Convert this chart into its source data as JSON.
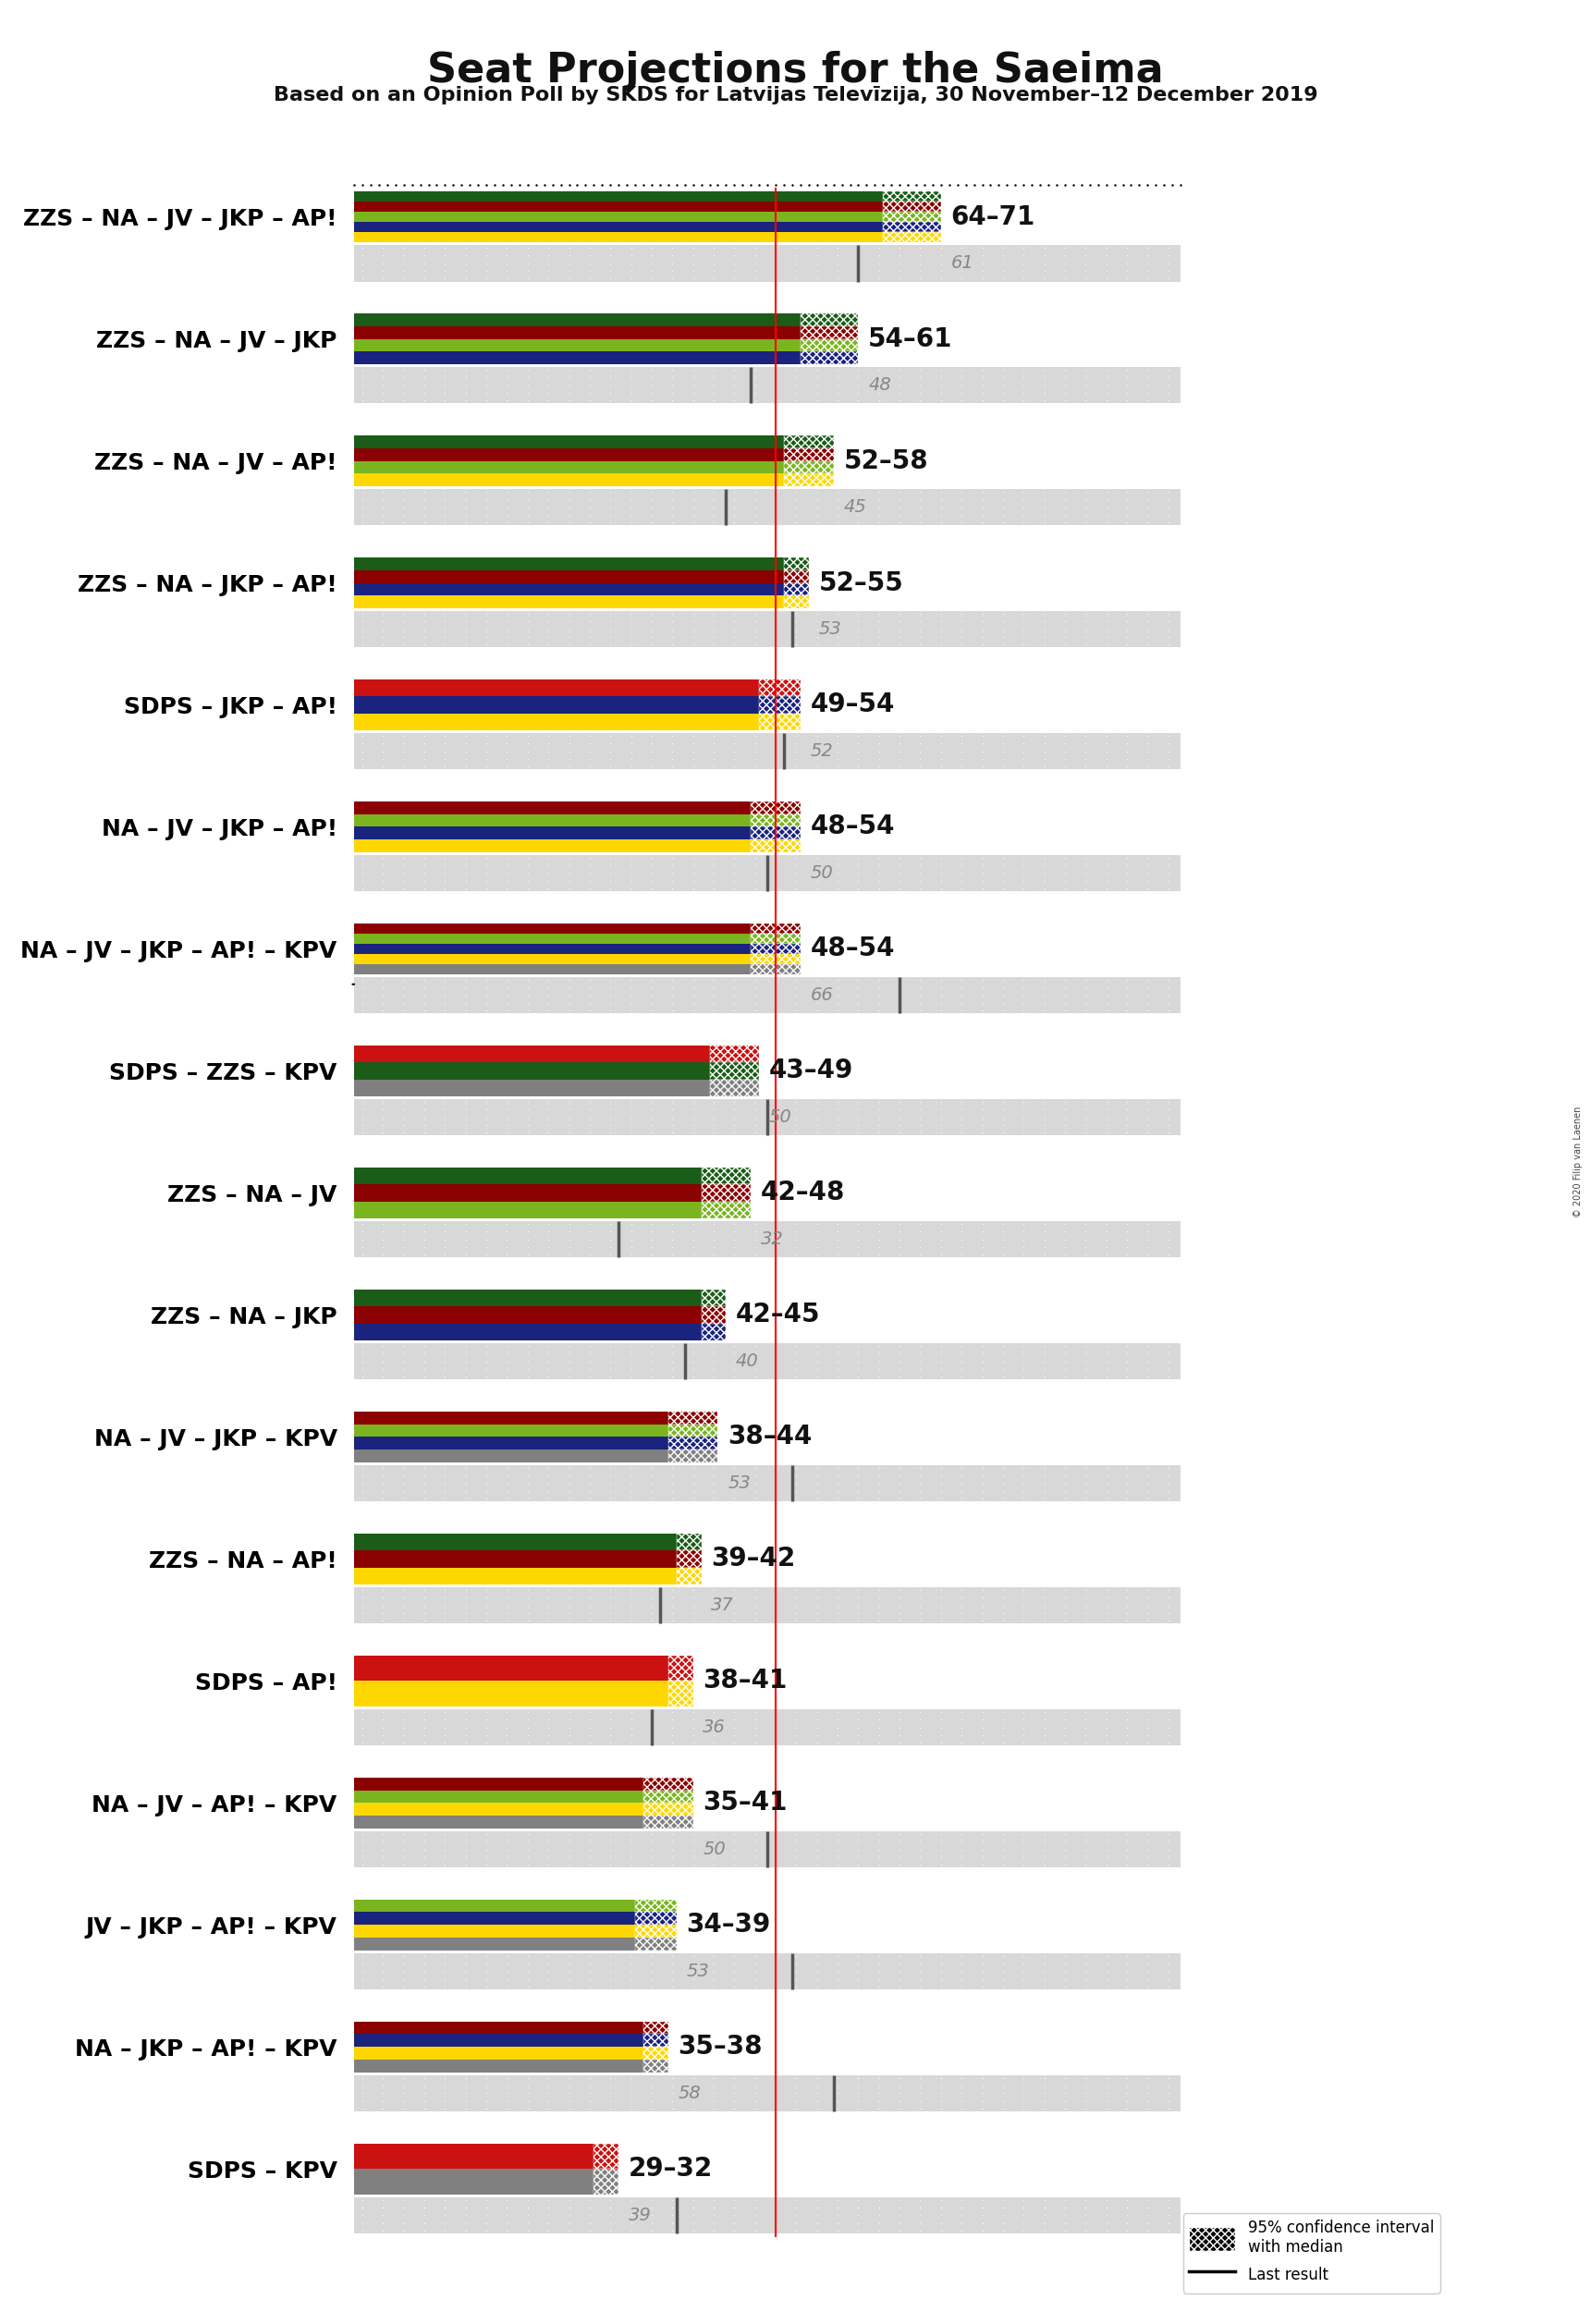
{
  "title": "Seat Projections for the Saeima",
  "subtitle": "Based on an Opinion Poll by SKDS for Latvijas Televīzija, 30 November–12 December 2019",
  "copyright": "© 2020 Filip van Laenen",
  "coalitions": [
    {
      "name": "ZZS – NA – JV – JKP – AP!",
      "parties": [
        "ZZS",
        "NA",
        "JV",
        "JKP",
        "AP!"
      ],
      "range_low": 64,
      "range_high": 71,
      "median": 67,
      "last": 61,
      "underlined": false
    },
    {
      "name": "ZZS – NA – JV – JKP",
      "parties": [
        "ZZS",
        "NA",
        "JV",
        "JKP"
      ],
      "range_low": 54,
      "range_high": 61,
      "median": 57,
      "last": 48,
      "underlined": false
    },
    {
      "name": "ZZS – NA – JV – AP!",
      "parties": [
        "ZZS",
        "NA",
        "JV",
        "AP!"
      ],
      "range_low": 52,
      "range_high": 58,
      "median": 55,
      "last": 45,
      "underlined": false
    },
    {
      "name": "ZZS – NA – JKP – AP!",
      "parties": [
        "ZZS",
        "NA",
        "JKP",
        "AP!"
      ],
      "range_low": 52,
      "range_high": 55,
      "median": 53,
      "last": 53,
      "underlined": false
    },
    {
      "name": "SDPS – JKP – AP!",
      "parties": [
        "SDPS",
        "JKP",
        "AP!"
      ],
      "range_low": 49,
      "range_high": 54,
      "median": 51,
      "last": 52,
      "underlined": false
    },
    {
      "name": "NA – JV – JKP – AP!",
      "parties": [
        "NA",
        "JV",
        "JKP",
        "AP!"
      ],
      "range_low": 48,
      "range_high": 54,
      "median": 51,
      "last": 50,
      "underlined": false
    },
    {
      "name": "NA – JV – JKP – AP! – KPV",
      "parties": [
        "NA",
        "JV",
        "JKP",
        "AP!",
        "KPV"
      ],
      "range_low": 48,
      "range_high": 54,
      "median": 51,
      "last": 66,
      "underlined": true
    },
    {
      "name": "SDPS – ZZS – KPV",
      "parties": [
        "SDPS",
        "ZZS",
        "KPV"
      ],
      "range_low": 43,
      "range_high": 49,
      "median": 46,
      "last": 50,
      "underlined": false
    },
    {
      "name": "ZZS – NA – JV",
      "parties": [
        "ZZS",
        "NA",
        "JV"
      ],
      "range_low": 42,
      "range_high": 48,
      "median": 45,
      "last": 32,
      "underlined": false
    },
    {
      "name": "ZZS – NA – JKP",
      "parties": [
        "ZZS",
        "NA",
        "JKP"
      ],
      "range_low": 42,
      "range_high": 45,
      "median": 43,
      "last": 40,
      "underlined": false
    },
    {
      "name": "NA – JV – JKP – KPV",
      "parties": [
        "NA",
        "JV",
        "JKP",
        "KPV"
      ],
      "range_low": 38,
      "range_high": 44,
      "median": 41,
      "last": 53,
      "underlined": false
    },
    {
      "name": "ZZS – NA – AP!",
      "parties": [
        "ZZS",
        "NA",
        "AP!"
      ],
      "range_low": 39,
      "range_high": 42,
      "median": 40,
      "last": 37,
      "underlined": false
    },
    {
      "name": "SDPS – AP!",
      "parties": [
        "SDPS",
        "AP!"
      ],
      "range_low": 38,
      "range_high": 41,
      "median": 39,
      "last": 36,
      "underlined": false
    },
    {
      "name": "NA – JV – AP! – KPV",
      "parties": [
        "NA",
        "JV",
        "AP!",
        "KPV"
      ],
      "range_low": 35,
      "range_high": 41,
      "median": 38,
      "last": 50,
      "underlined": false
    },
    {
      "name": "JV – JKP – AP! – KPV",
      "parties": [
        "JV",
        "JKP",
        "AP!",
        "KPV"
      ],
      "range_low": 34,
      "range_high": 39,
      "median": 36,
      "last": 53,
      "underlined": false
    },
    {
      "name": "NA – JKP – AP! – KPV",
      "parties": [
        "NA",
        "JKP",
        "AP!",
        "KPV"
      ],
      "range_low": 35,
      "range_high": 38,
      "median": 36,
      "last": 58,
      "underlined": false
    },
    {
      "name": "SDPS – KPV",
      "parties": [
        "SDPS",
        "KPV"
      ],
      "range_low": 29,
      "range_high": 32,
      "median": 30,
      "last": 39,
      "underlined": false
    }
  ],
  "party_colors": {
    "ZZS": "#1a5c18",
    "NA": "#8b0000",
    "JV": "#7ab520",
    "JKP": "#1a237e",
    "AP!": "#ffd700",
    "SDPS": "#cc1111",
    "KPV": "#808080"
  },
  "majority_line": 51,
  "x_max": 100,
  "background_color": "#ffffff",
  "text_color": "#111111",
  "gray_text_color": "#888888",
  "range_fontsize": 20,
  "label_fontsize": 18,
  "last_fontsize": 14,
  "title_fontsize": 32,
  "subtitle_fontsize": 16
}
